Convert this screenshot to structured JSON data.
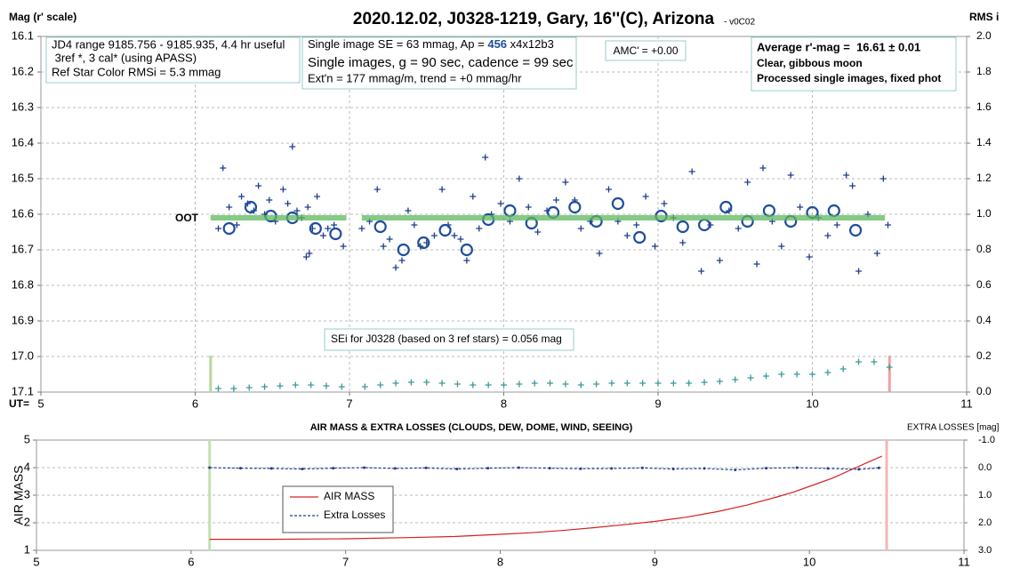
{
  "chart_data": [
    {
      "type": "scatter",
      "title": "2020.12.02, J0328-1219, Gary, 16''(C), Arizona",
      "subtitle": "- v0C02",
      "y_label": "Mag (r' scale)",
      "y2_label": "RMS i",
      "x_label": "UT=",
      "xlim": [
        5,
        11
      ],
      "xticks": [
        5,
        6,
        7,
        8,
        9,
        10,
        11
      ],
      "ylim": [
        17.1,
        16.1
      ],
      "yticks": [
        16.1,
        16.2,
        16.3,
        16.4,
        16.5,
        16.6,
        16.7,
        16.8,
        16.9,
        {
          "value": 17,
          "label": "17.0"
        },
        17.1
      ],
      "y2lim": [
        0,
        2
      ],
      "y2ticks": [
        {
          "value": 0,
          "label": "0.0"
        },
        0.2,
        0.4,
        0.6,
        0.8,
        {
          "value": 1,
          "label": "1.0"
        },
        1.2,
        1.4,
        1.6,
        1.8,
        {
          "value": 2,
          "label": "2.0"
        }
      ],
      "grid": "both",
      "annotations": {
        "info": [
          "JD4 range 9185.756 - 9185.935, 4.4 hr useful",
          " 3ref *, 3 cal* (using APASS)",
          "Ref Star Color RMSi = 5.3 mmag"
        ],
        "setup_first": [
          "Single image SE = 63 mmag, Ap = ",
          "456",
          " x4x12b3"
        ],
        "setup": [
          "Single images, g = 90 sec, cadence = 99 sec",
          "Ext'n = 177 mmag/m, trend = +0 mmag/hr"
        ],
        "amc": "AMC' = +0.00",
        "result": [
          "Average r'-mag =  16.61 ± 0.01",
          "Clear, gibbous moon",
          "Processed single images, fixed phot"
        ],
        "sei": "SEi for J0328 (based on 3 ref stars) = 0.056 mag",
        "oot": "OOT"
      },
      "vlines": [
        {
          "x": 6.1,
          "color": "#b5d99c"
        },
        {
          "x": 10.5,
          "color": "#f2a0a0"
        }
      ],
      "series": [
        {
          "marker": "plus",
          "color": "#1f3d8a",
          "x": [
            6.15,
            6.18,
            6.22,
            6.27,
            6.3,
            6.34,
            6.38,
            6.41,
            6.45,
            6.48,
            6.52,
            6.57,
            6.6,
            6.63,
            6.66,
            6.69,
            6.73,
            6.76,
            6.79,
            6.72,
            6.74,
            6.83,
            6.86,
            6.9,
            6.96,
            7.08,
            7.13,
            7.18,
            7.22,
            7.26,
            7.3,
            7.34,
            7.38,
            7.42,
            7.46,
            7.5,
            7.55,
            7.6,
            7.64,
            7.68,
            7.72,
            7.76,
            7.8,
            7.84,
            7.88,
            7.92,
            7.98,
            8.04,
            8.1,
            8.16,
            8.22,
            8.28,
            8.34,
            8.4,
            8.46,
            8.5,
            8.56,
            8.62,
            8.68,
            8.74,
            8.8,
            8.86,
            8.92,
            8.98,
            9.04,
            9.1,
            9.16,
            9.22,
            9.28,
            9.34,
            9.4,
            9.46,
            9.52,
            9.58,
            9.64,
            9.68,
            9.74,
            9.8,
            9.86,
            9.92,
            9.98,
            10.04,
            10.1,
            10.16,
            10.22,
            10.26,
            10.3,
            10.36,
            10.42,
            10.46,
            10.49
          ],
          "values": [
            16.64,
            16.47,
            16.58,
            16.63,
            16.55,
            16.57,
            16.59,
            16.52,
            16.6,
            16.56,
            16.62,
            16.53,
            16.57,
            16.41,
            16.59,
            16.61,
            16.58,
            16.64,
            16.55,
            16.72,
            16.71,
            16.66,
            16.64,
            16.63,
            16.69,
            16.64,
            16.62,
            16.53,
            16.69,
            16.67,
            16.75,
            16.73,
            16.59,
            16.63,
            16.69,
            16.68,
            16.66,
            16.53,
            16.63,
            16.66,
            16.67,
            16.73,
            16.55,
            16.64,
            16.44,
            16.6,
            16.57,
            16.62,
            16.5,
            16.58,
            16.65,
            16.59,
            16.56,
            16.51,
            16.56,
            16.64,
            16.62,
            16.71,
            16.53,
            16.62,
            16.66,
            16.63,
            16.55,
            16.69,
            16.57,
            16.61,
            16.68,
            16.48,
            16.76,
            16.63,
            16.73,
            16.59,
            16.64,
            16.51,
            16.74,
            16.47,
            16.62,
            16.69,
            16.49,
            16.58,
            16.72,
            16.61,
            16.66,
            16.63,
            16.49,
            16.52,
            16.76,
            16.6,
            16.71,
            16.5,
            16.63
          ]
        },
        {
          "marker": "circle",
          "color": "#1f4e9c",
          "x": [
            6.22,
            6.36,
            6.49,
            6.63,
            6.78,
            6.91,
            7.2,
            7.35,
            7.48,
            7.62,
            7.76,
            7.9,
            8.04,
            8.18,
            8.32,
            8.46,
            8.6,
            8.74,
            8.88,
            9.02,
            9.16,
            9.3,
            9.44,
            9.58,
            9.72,
            9.86,
            10.0,
            10.14,
            10.28
          ],
          "values": [
            16.64,
            16.58,
            16.605,
            16.61,
            16.64,
            16.655,
            16.635,
            16.7,
            16.68,
            16.645,
            16.7,
            16.615,
            16.59,
            16.625,
            16.595,
            16.58,
            16.62,
            16.57,
            16.665,
            16.605,
            16.635,
            16.63,
            16.58,
            16.62,
            16.59,
            16.62,
            16.595,
            16.59,
            16.645
          ]
        },
        {
          "marker": "none",
          "color": "#5cb85c",
          "x": [
            6.1,
            6.98,
            7.03,
            7.08,
            10.47
          ],
          "values": [
            16.61,
            16.61,
            null,
            16.61,
            16.61
          ]
        },
        {
          "marker": "plus",
          "color": "#3a9a9a",
          "axis": "y2",
          "x": [
            6.15,
            6.25,
            6.35,
            6.45,
            6.55,
            6.65,
            6.75,
            6.85,
            6.95,
            7.1,
            7.2,
            7.3,
            7.4,
            7.5,
            7.6,
            7.7,
            7.8,
            7.9,
            8.0,
            8.1,
            8.2,
            8.3,
            8.4,
            8.5,
            8.6,
            8.7,
            8.8,
            8.9,
            9.0,
            9.1,
            9.2,
            9.3,
            9.4,
            9.5,
            9.6,
            9.7,
            9.8,
            9.9,
            10.0,
            10.1,
            10.2,
            10.3,
            10.4,
            10.5
          ],
          "values": [
            0.02,
            0.02,
            0.025,
            0.03,
            0.035,
            0.04,
            0.04,
            0.035,
            0.03,
            0.03,
            0.04,
            0.05,
            0.055,
            0.055,
            0.05,
            0.045,
            0.04,
            0.04,
            0.04,
            0.045,
            0.05,
            0.05,
            0.045,
            0.04,
            0.045,
            0.05,
            0.05,
            0.05,
            0.05,
            0.05,
            0.05,
            0.055,
            0.06,
            0.07,
            0.08,
            0.09,
            0.1,
            0.1,
            0.1,
            0.11,
            0.13,
            0.17,
            0.17,
            0.14
          ]
        }
      ]
    },
    {
      "type": "line",
      "title": "AIR MASS & EXTRA LOSSES (CLOUDS, DEW, DOME, WIND, SEEING)",
      "y_label": "AIR MASS",
      "y2_label": "EXTRA LOSSES [mag]",
      "xlim": [
        5,
        11
      ],
      "xticks": [
        5,
        6,
        7,
        8,
        9,
        10,
        11
      ],
      "ylim": [
        1,
        5
      ],
      "yticks": [
        1,
        2,
        3,
        4,
        5
      ],
      "y2lim": [
        3,
        -1
      ],
      "y2ticks": [
        {
          "value": 3,
          "label": "3.0"
        },
        {
          "value": 2,
          "label": "2.0"
        },
        {
          "value": 1,
          "label": "1.0"
        },
        {
          "value": 0,
          "label": "0.0"
        },
        {
          "value": -1,
          "label": "-1.0"
        }
      ],
      "grid": "y",
      "legend": "inside",
      "vlines": [
        {
          "x": 6.12,
          "color": "#c5e0b0"
        },
        {
          "x": 10.5,
          "color": "#f5b5b5"
        }
      ],
      "series": [
        {
          "name": "AIR MASS",
          "color": "#d62020",
          "marker": "none",
          "x": [
            6.12,
            6.5,
            7.0,
            7.4,
            7.7,
            8.0,
            8.2,
            8.4,
            8.6,
            8.8,
            9.0,
            9.2,
            9.4,
            9.6,
            9.8,
            9.9,
            10.05,
            10.15,
            10.3,
            10.4,
            10.47
          ],
          "values": [
            1.4,
            1.4,
            1.42,
            1.46,
            1.5,
            1.58,
            1.64,
            1.72,
            1.82,
            1.93,
            2.05,
            2.2,
            2.4,
            2.65,
            2.95,
            3.12,
            3.42,
            3.62,
            4.0,
            4.25,
            4.42
          ]
        },
        {
          "name": "Extra Losses",
          "color": "#1f3d8a",
          "marker": "dot",
          "axis": "y2",
          "dash": true,
          "x": [
            6.12,
            6.32,
            6.52,
            6.72,
            6.92,
            7.12,
            7.32,
            7.52,
            7.72,
            7.92,
            8.12,
            8.32,
            8.52,
            8.72,
            8.92,
            9.12,
            9.32,
            9.52,
            9.72,
            9.92,
            10.12,
            10.32,
            10.45
          ],
          "values": [
            0.0,
            0.02,
            0.03,
            0.05,
            0.02,
            0.0,
            0.03,
            0.01,
            0.05,
            0.02,
            0.0,
            0.02,
            0.04,
            0.03,
            0.01,
            0.05,
            0.03,
            0.08,
            0.02,
            0.0,
            0.03,
            0.06,
            0.01
          ]
        }
      ]
    }
  ]
}
